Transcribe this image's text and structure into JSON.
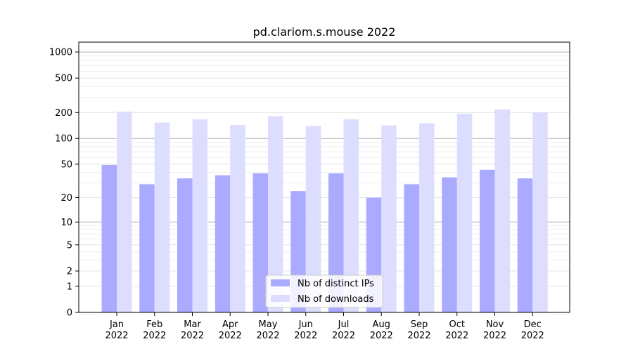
{
  "chart_data": {
    "type": "bar",
    "title": "pd.clariom.s.mouse 2022",
    "categories": [
      [
        "Jan",
        "2022"
      ],
      [
        "Feb",
        "2022"
      ],
      [
        "Mar",
        "2022"
      ],
      [
        "Apr",
        "2022"
      ],
      [
        "May",
        "2022"
      ],
      [
        "Jun",
        "2022"
      ],
      [
        "Jul",
        "2022"
      ],
      [
        "Aug",
        "2022"
      ],
      [
        "Sep",
        "2022"
      ],
      [
        "Oct",
        "2022"
      ],
      [
        "Nov",
        "2022"
      ],
      [
        "Dec",
        "2022"
      ]
    ],
    "series": [
      {
        "name": "Nb of distinct IPs",
        "color": "#aaaaff",
        "values": [
          49,
          29,
          34,
          37,
          39,
          24,
          39,
          20,
          29,
          35,
          43,
          34
        ]
      },
      {
        "name": "Nb of downloads",
        "color": "#ddddff",
        "values": [
          205,
          153,
          166,
          143,
          181,
          140,
          167,
          142,
          150,
          194,
          217,
          201
        ]
      }
    ],
    "y_scale": "symlog (log(1+y))",
    "ylim": [
      0,
      1300
    ],
    "yticks": [
      0,
      1,
      2,
      5,
      10,
      20,
      50,
      100,
      200,
      500,
      1000
    ],
    "grid": true,
    "legend_position": "bottom-center"
  }
}
